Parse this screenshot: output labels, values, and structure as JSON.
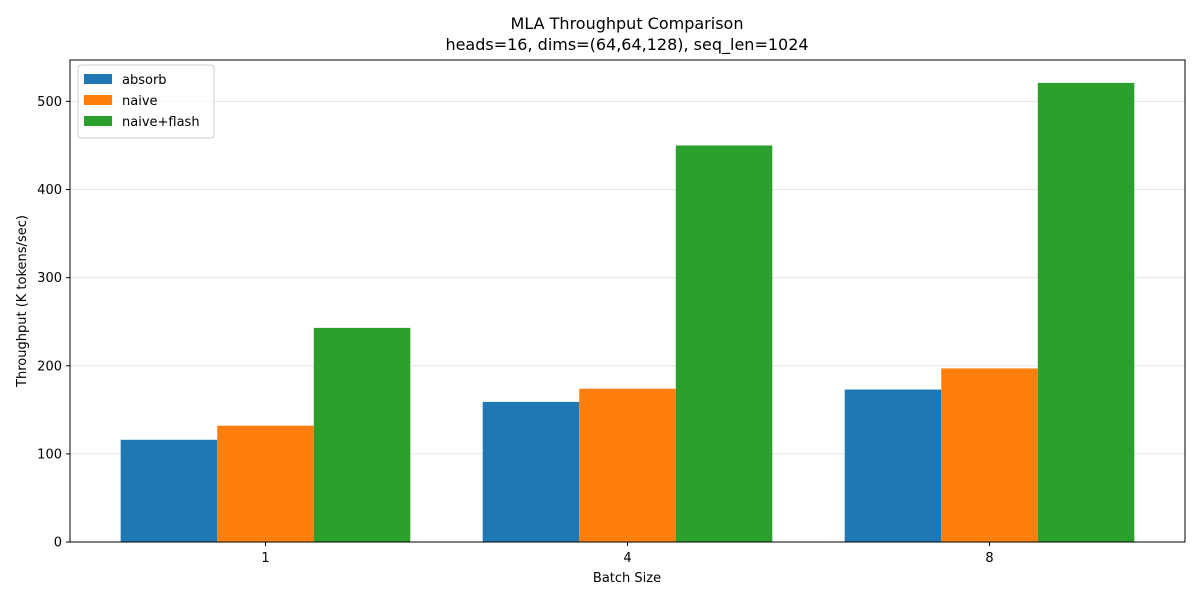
{
  "chart_data": {
    "type": "bar",
    "title": "MLA Throughput Comparison",
    "subtitle": "heads=16, dims=(64,64,128), seq_len=1024",
    "xlabel": "Batch Size",
    "ylabel": "Throughput (K tokens/sec)",
    "categories": [
      "1",
      "4",
      "8"
    ],
    "series": [
      {
        "name": "absorb",
        "color": "#1f77b4",
        "values": [
          116,
          159,
          173
        ]
      },
      {
        "name": "naive",
        "color": "#ff7f0e",
        "values": [
          132,
          174,
          197
        ]
      },
      {
        "name": "naive+flash",
        "color": "#2ca02c",
        "values": [
          243,
          450,
          521
        ]
      }
    ],
    "ylim": [
      0,
      547
    ],
    "yticks": [
      0,
      100,
      200,
      300,
      400,
      500
    ],
    "grid": "y",
    "legend": "top-left"
  }
}
